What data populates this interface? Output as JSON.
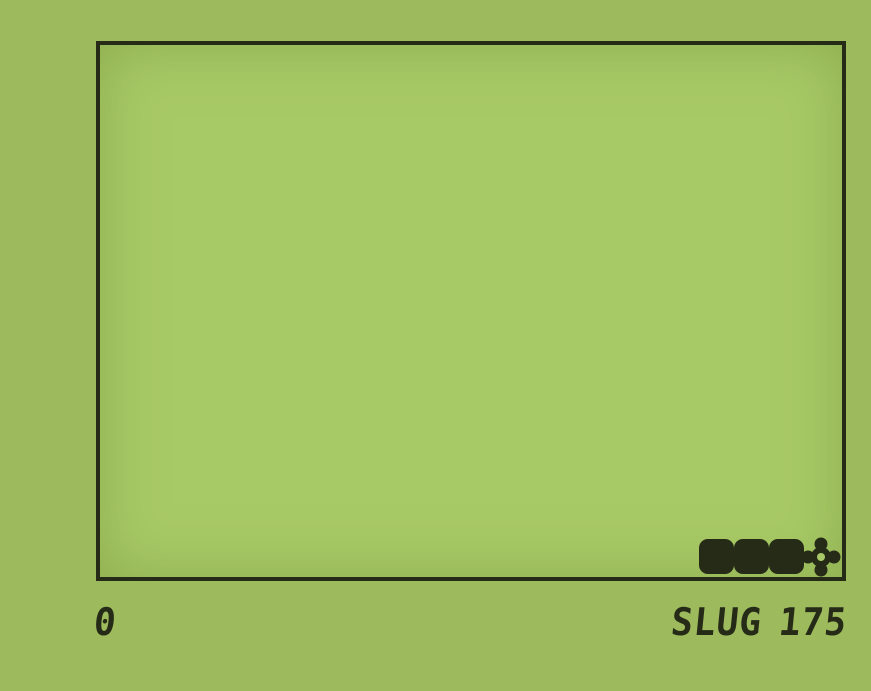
{
  "game": {
    "score": "0",
    "mode_label": "SLUG",
    "speed": "175"
  },
  "colors": {
    "background": "#9dba5c",
    "playfield": "#a8ca66",
    "ink": "#262b18"
  },
  "snake": {
    "direction": "right",
    "body_segments": 3
  },
  "icons": {
    "snake_head": "flower-shaped-head-icon"
  }
}
